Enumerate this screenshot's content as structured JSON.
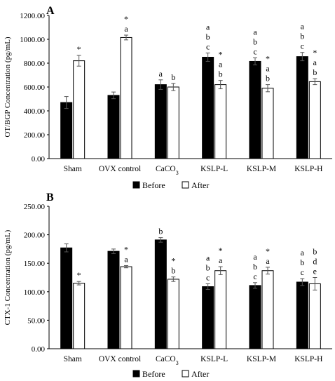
{
  "chart_data": [
    {
      "panel_label": "A",
      "type": "bar",
      "ylabel": "OT/BGP Concentration (pg/mL)",
      "ylim": [
        0,
        1200
      ],
      "yticks": [
        "0.00",
        "200.00",
        "400.00",
        "600.00",
        "800.00",
        "1000.00",
        "1200.00"
      ],
      "ytick_values": [
        0,
        200,
        400,
        600,
        800,
        1000,
        1200
      ],
      "categories": [
        "Sham",
        "OVX control",
        "CaCO3",
        "KSLP-L",
        "KSLP-M",
        "KSLP-H"
      ],
      "category_labels": [
        {
          "main": "Sham",
          "sub": ""
        },
        {
          "main": "OVX control",
          "sub": ""
        },
        {
          "main": "CaCO",
          "sub": "3"
        },
        {
          "main": "KSLP-L",
          "sub": ""
        },
        {
          "main": "KSLP-M",
          "sub": ""
        },
        {
          "main": "KSLP-H",
          "sub": ""
        }
      ],
      "series": [
        {
          "name": "Before",
          "color": "#000000",
          "values": [
            470,
            530,
            620,
            850,
            815,
            855
          ],
          "errors": [
            50,
            28,
            40,
            35,
            30,
            35
          ],
          "annotations": [
            [],
            [],
            [
              "a"
            ],
            [
              "a",
              "b",
              "c"
            ],
            [
              "a",
              "b",
              "c"
            ],
            [
              "a",
              "b",
              "c"
            ]
          ]
        },
        {
          "name": "After",
          "color": "#ffffff",
          "values": [
            820,
            1015,
            600,
            620,
            590,
            645
          ],
          "errors": [
            45,
            20,
            30,
            35,
            30,
            25
          ],
          "annotations": [
            [
              "*"
            ],
            [
              "*",
              "a"
            ],
            [
              "b"
            ],
            [
              "*",
              "a",
              "b"
            ],
            [
              "*",
              "a",
              "b"
            ],
            [
              "*",
              "a",
              "b"
            ]
          ]
        }
      ],
      "grid": false,
      "legend": "bottom-center"
    },
    {
      "panel_label": "B",
      "type": "bar",
      "ylabel": "CTX-1 Concentration (pg/mL)",
      "ylim": [
        0,
        250
      ],
      "yticks": [
        "0.00",
        "50.00",
        "100.00",
        "150.00",
        "200.00",
        "250.00"
      ],
      "ytick_values": [
        0,
        50,
        100,
        150,
        200,
        250
      ],
      "categories": [
        "Sham",
        "OVX control",
        "CaCO3",
        "KSLP-L",
        "KSLP-M",
        "KSLP-H"
      ],
      "category_labels": [
        {
          "main": "Sham",
          "sub": ""
        },
        {
          "main": "OVX control",
          "sub": ""
        },
        {
          "main": "CaCO",
          "sub": "3"
        },
        {
          "main": "KSLP-L",
          "sub": ""
        },
        {
          "main": "KSLP-M",
          "sub": ""
        },
        {
          "main": "KSLP-H",
          "sub": ""
        }
      ],
      "series": [
        {
          "name": "Before",
          "color": "#000000",
          "values": [
            177,
            171,
            191,
            109,
            111,
            117
          ],
          "errors": [
            7,
            4,
            4,
            5,
            5,
            6
          ],
          "annotations": [
            [],
            [],
            [
              "b"
            ],
            [
              "a",
              "b",
              "c"
            ],
            [
              "a",
              "b",
              "c"
            ],
            [
              "a",
              "b",
              "c"
            ]
          ]
        },
        {
          "name": "After",
          "color": "#ffffff",
          "values": [
            115,
            144,
            122,
            137,
            137,
            114
          ],
          "errors": [
            3,
            2,
            4,
            7,
            6,
            11
          ],
          "annotations": [
            [
              "*"
            ],
            [
              "*",
              "a"
            ],
            [
              "*",
              "b"
            ],
            [
              "*",
              "a"
            ],
            [
              "*",
              "a"
            ],
            [
              "b",
              "d",
              "e"
            ]
          ]
        }
      ],
      "grid": false,
      "legend": "bottom-center"
    }
  ]
}
